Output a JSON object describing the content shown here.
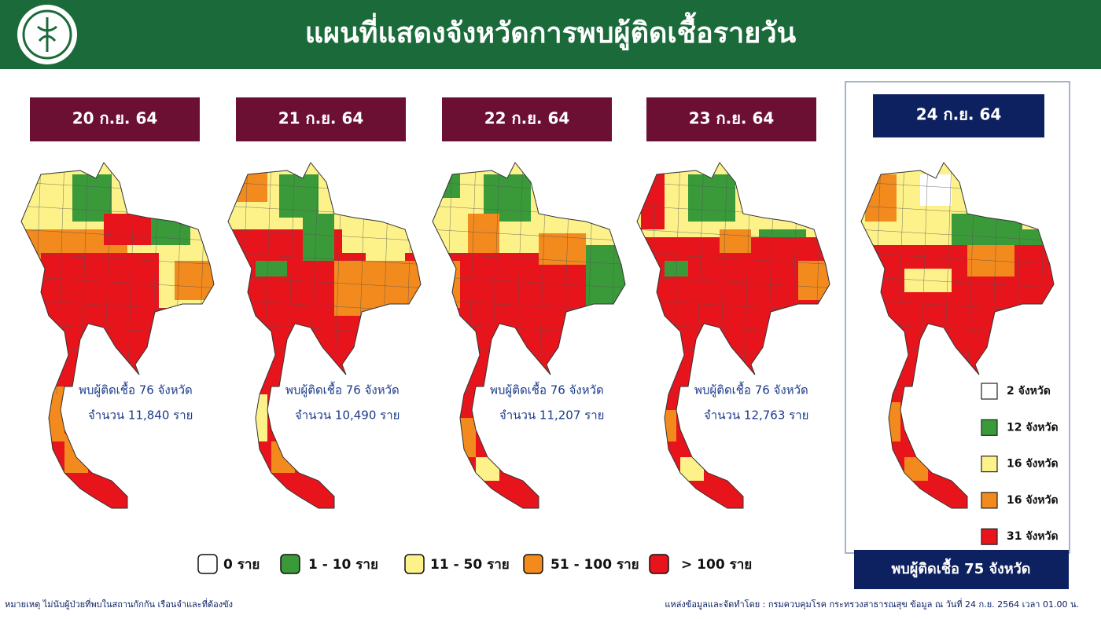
{
  "header": {
    "title": "แผนที่แสดงจังหวัดการพบผู้ติดเชื้อรายวัน"
  },
  "panels": [
    {
      "date": "20 ก.ย. 64",
      "provinces": "พบผู้ติดเชื้อ 76 จังหวัด",
      "cases": "จำนวน 11,840 ราย"
    },
    {
      "date": "21 ก.ย. 64",
      "provinces": "พบผู้ติดเชื้อ 76 จังหวัด",
      "cases": "จำนวน 10,490 ราย"
    },
    {
      "date": "22 ก.ย. 64",
      "provinces": "พบผู้ติดเชื้อ 76 จังหวัด",
      "cases": "จำนวน 11,207 ราย"
    },
    {
      "date": "23 ก.ย. 64",
      "provinces": "พบผู้ติดเชื้อ 76 จังหวัด",
      "cases": "จำนวน 12,763 ราย"
    }
  ],
  "latest": {
    "date": "24 ก.ย. 64",
    "counts": [
      "2 จังหวัด",
      "12 จังหวัด",
      "16 จังหวัด",
      "16 จังหวัด",
      "31 จังหวัด"
    ],
    "summary": "พบผู้ติดเชื้อ 75 จังหวัด"
  },
  "legend": [
    {
      "label": "0 ราย",
      "color": "#ffffff"
    },
    {
      "label": "1 - 10 ราย",
      "color": "#3a9a3a"
    },
    {
      "label": "11 - 50 ราย",
      "color": "#fdf28a"
    },
    {
      "label": "51 - 100 ราย",
      "color": "#f28a1e"
    },
    {
      "label": "> 100 ราย",
      "color": "#e8141c"
    }
  ],
  "footer": {
    "note": "หมายเหตุ ไม่นับผู้ป่วยที่พบในสถานกักกัน เรือนจำและที่ต้องขัง",
    "source": "แหล่งข้อมูลและจัดทำโดย : กรมควบคุมโรค กระทรวงสาธารณสุข ข้อมูล ณ วันที่ 24 ก.ย. 2564 เวลา 01.00 น."
  }
}
